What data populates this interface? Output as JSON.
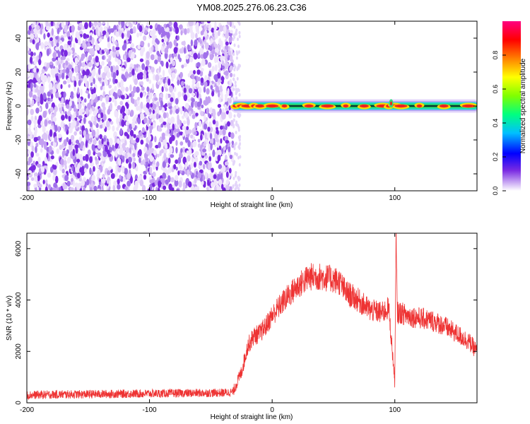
{
  "title": "YM08.2025.276.06.23.C36",
  "colors": {
    "spectrogram_noise": "#7a2ae0",
    "snr_line": "#ee3333",
    "colorbar": [
      "#ffffff",
      "#7a2be2",
      "#0000ff",
      "#00bfff",
      "#00ff80",
      "#80ff00",
      "#ffff00",
      "#ff8000",
      "#ff0000",
      "#ff0080"
    ]
  },
  "chart_data": [
    {
      "type": "heatmap",
      "title": "YM08.2025.276.06.23.C36",
      "xlabel": "Height of straight line (km)",
      "ylabel": "Frequency (Hz)",
      "xlim": [
        -200,
        167
      ],
      "ylim": [
        -50,
        50
      ],
      "xticks": [
        -200,
        -100,
        0,
        100
      ],
      "xtick_labels": [
        "-200",
        "-100",
        "0",
        "100"
      ],
      "yticks": [
        -40,
        -20,
        0,
        20,
        40
      ],
      "ytick_labels": [
        "-40",
        "-20",
        "0",
        "20",
        "40"
      ],
      "colorbar": {
        "label": "Normalized spectral amplitude",
        "range": [
          0,
          1
        ],
        "ticks": [
          0,
          0.2,
          0.4,
          0.6,
          0.8
        ],
        "tick_labels": [
          "0.0",
          "0.2",
          "0.4",
          "0.6",
          "0.8"
        ]
      },
      "regions": [
        {
          "x_range": [
            -200,
            -32
          ],
          "freq_range": [
            -50,
            50
          ],
          "amplitude": 0.1,
          "description_kind": "broadband noise"
        },
        {
          "x_range": [
            -32,
            167
          ],
          "freq_center": 0,
          "freq_halfwidth": 2,
          "amplitude": 0.9,
          "description_kind": "narrow band signal"
        }
      ],
      "hotspots_x": [
        -30,
        -25,
        -20,
        -15,
        -10,
        0,
        10,
        30,
        45,
        60,
        75,
        90,
        95,
        100,
        105,
        120,
        140,
        160
      ]
    },
    {
      "type": "line",
      "xlabel": "Height of straight line (km)",
      "ylabel": "SNR (10 * v/v)",
      "xlim": [
        -200,
        167
      ],
      "ylim": [
        0,
        6600
      ],
      "xticks": [
        -200,
        -100,
        0,
        100
      ],
      "xtick_labels": [
        "-200",
        "-100",
        "0",
        "100"
      ],
      "yticks": [
        0,
        2000,
        4000,
        6000
      ],
      "ytick_labels": [
        "0",
        "2000",
        "4000",
        "6000"
      ],
      "series": [
        {
          "x": [
            -200,
            -180,
            -160,
            -140,
            -120,
            -100,
            -80,
            -60,
            -40,
            -32,
            -25,
            -20,
            -15,
            -10,
            -5,
            0,
            10,
            20,
            30,
            40,
            50,
            55,
            60,
            70,
            80,
            90,
            95,
            98,
            100,
            101,
            102,
            105,
            110,
            120,
            130,
            140,
            150,
            160,
            167
          ],
          "y": [
            300,
            320,
            330,
            340,
            350,
            360,
            370,
            380,
            390,
            420,
            1200,
            2200,
            2600,
            2700,
            3000,
            3400,
            4000,
            4500,
            4900,
            4900,
            4800,
            4700,
            4300,
            4000,
            3600,
            3500,
            3700,
            2000,
            800,
            6500,
            3500,
            3500,
            3400,
            3300,
            3200,
            3000,
            2700,
            2400,
            2000
          ],
          "noise": 300
        }
      ]
    }
  ]
}
